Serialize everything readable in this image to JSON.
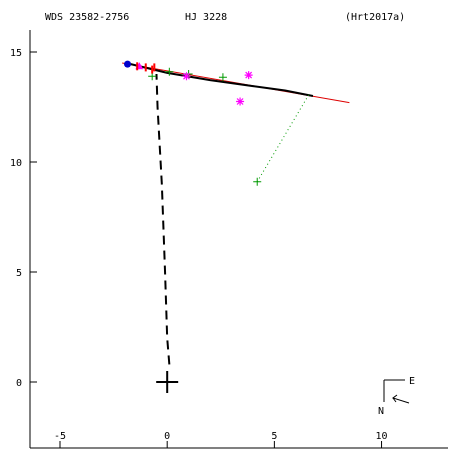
{
  "header": {
    "wds_id": "WDS 23582-2756",
    "discoverer": "HJ 3228",
    "reference": "(Hrt2017a)"
  },
  "compass": {
    "east_label": "E",
    "north_label": "N"
  },
  "chart_data": {
    "type": "scatter",
    "title": "",
    "xlabel": "",
    "ylabel": "",
    "xlim": [
      -6.4,
      13.1
    ],
    "ylim": [
      -3.0,
      16.0
    ],
    "x_ticks": [
      -5,
      0,
      5,
      10
    ],
    "y_ticks": [
      0,
      5,
      10,
      15
    ],
    "x_tick_labels": [
      "-5",
      "0",
      "5",
      "10"
    ],
    "y_tick_labels": [
      "0",
      "5",
      "10",
      "15"
    ],
    "grid": false,
    "colors": {
      "axes": "#000000",
      "orbit": "#000000",
      "fit_line": "#dd0000",
      "micrometric": "#009900",
      "interferometric": "#ff00ff",
      "speckle": "#0000cc",
      "residual": "#ff0000",
      "nodes": "#000000"
    },
    "primary": {
      "x": 0,
      "y": 0
    },
    "orbit_arc": [
      [
        -1.7,
        14.45
      ],
      [
        0.0,
        14.05
      ],
      [
        2.0,
        13.72
      ],
      [
        4.0,
        13.45
      ],
      [
        5.5,
        13.25
      ],
      [
        6.8,
        13.0
      ]
    ],
    "fit_line": [
      [
        -2.1,
        14.5
      ],
      [
        8.5,
        12.7
      ]
    ],
    "line_of_nodes": [
      [
        0.1,
        0.8
      ],
      [
        0.0,
        2.0
      ],
      [
        -0.1,
        5.0
      ],
      [
        -0.25,
        9.0
      ],
      [
        -0.45,
        12.5
      ],
      [
        -0.5,
        14.0
      ]
    ],
    "series": [
      {
        "marker": "plus",
        "points": [
          [
            -0.7,
            13.9
          ],
          [
            0.1,
            14.1
          ],
          [
            1.0,
            14.0
          ],
          [
            2.6,
            13.85
          ],
          [
            4.2,
            9.1
          ]
        ]
      },
      {
        "marker": "asterisk",
        "points": [
          [
            3.8,
            13.95
          ],
          [
            3.4,
            12.75
          ],
          [
            0.9,
            13.9
          ]
        ]
      },
      {
        "marker": "triangle",
        "points": [
          [
            -1.3,
            14.35
          ]
        ]
      },
      {
        "marker": "dot",
        "points": [
          [
            -1.85,
            14.45
          ]
        ]
      },
      {
        "marker": "tick",
        "points": [
          [
            -1.0,
            14.3
          ],
          [
            -0.7,
            14.2
          ],
          [
            -0.6,
            14.3
          ],
          [
            -1.4,
            14.35
          ]
        ]
      }
    ],
    "residual_links": [
      {
        "from": [
          4.2,
          9.1
        ],
        "to": [
          6.6,
          13.05
        ]
      }
    ]
  }
}
